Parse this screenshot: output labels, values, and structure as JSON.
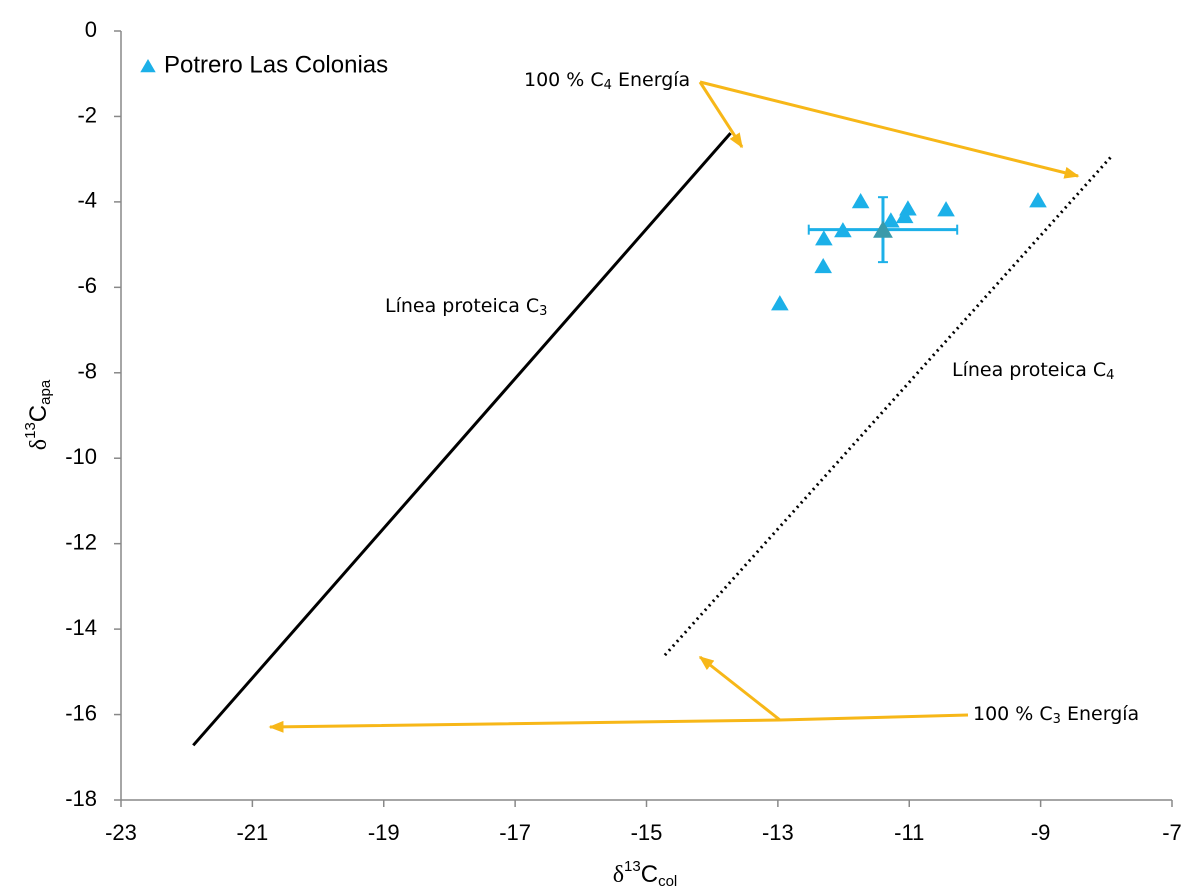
{
  "chart_data": {
    "type": "scatter",
    "x_label": {
      "pre": "δ",
      "sup": "13",
      "base": "C",
      "sub": "col"
    },
    "y_label": {
      "pre": "δ",
      "sup": "13",
      "base": "C",
      "sub": "apa"
    },
    "xlim": [
      -23,
      -7
    ],
    "xticks": [
      -23,
      -21,
      -19,
      -17,
      -15,
      -13,
      -11,
      -9,
      -7
    ],
    "ylim": [
      -18,
      0
    ],
    "yticks": [
      -18,
      -16,
      -14,
      -12,
      -10,
      -8,
      -6,
      -4,
      -2,
      0
    ],
    "legend": "top-left",
    "series": [
      {
        "name": "Potrero Las Colonias",
        "color": "#1cb0e8",
        "x": [
          -12.97,
          -12.31,
          -12.3,
          -12.01,
          -11.74,
          -11.28,
          -11.07,
          -11.02,
          -10.44,
          -9.04
        ],
        "y": [
          -6.37,
          -5.5,
          -4.85,
          -4.66,
          -3.98,
          -4.43,
          -4.33,
          -4.15,
          -4.17,
          -3.96
        ]
      }
    ],
    "mean": {
      "x": -11.4,
      "y": -4.65,
      "xerr": 1.13,
      "yerr": 0.76,
      "color": "#3a9aaa",
      "err_color": "#1cb0e8"
    },
    "lines": [
      {
        "x": [
          -21.9,
          -13.72
        ],
        "y": [
          -16.72,
          -2.39
        ],
        "color": "#000000",
        "style": "solid"
      },
      {
        "x": [
          -14.72,
          -7.92
        ],
        "y": [
          -14.61,
          -2.93
        ],
        "color": "#000000",
        "style": "dotted"
      }
    ],
    "annotations": [
      {
        "text": "Línea proteica C",
        "sub": "3",
        "after": ""
      },
      {
        "text": "Línea proteica C",
        "sub": "4",
        "after": ""
      },
      {
        "text": "100 % C",
        "sub": "4",
        "after": " Energía"
      },
      {
        "text": "100 % C",
        "sub": "3",
        "after": " Energía"
      }
    ]
  }
}
